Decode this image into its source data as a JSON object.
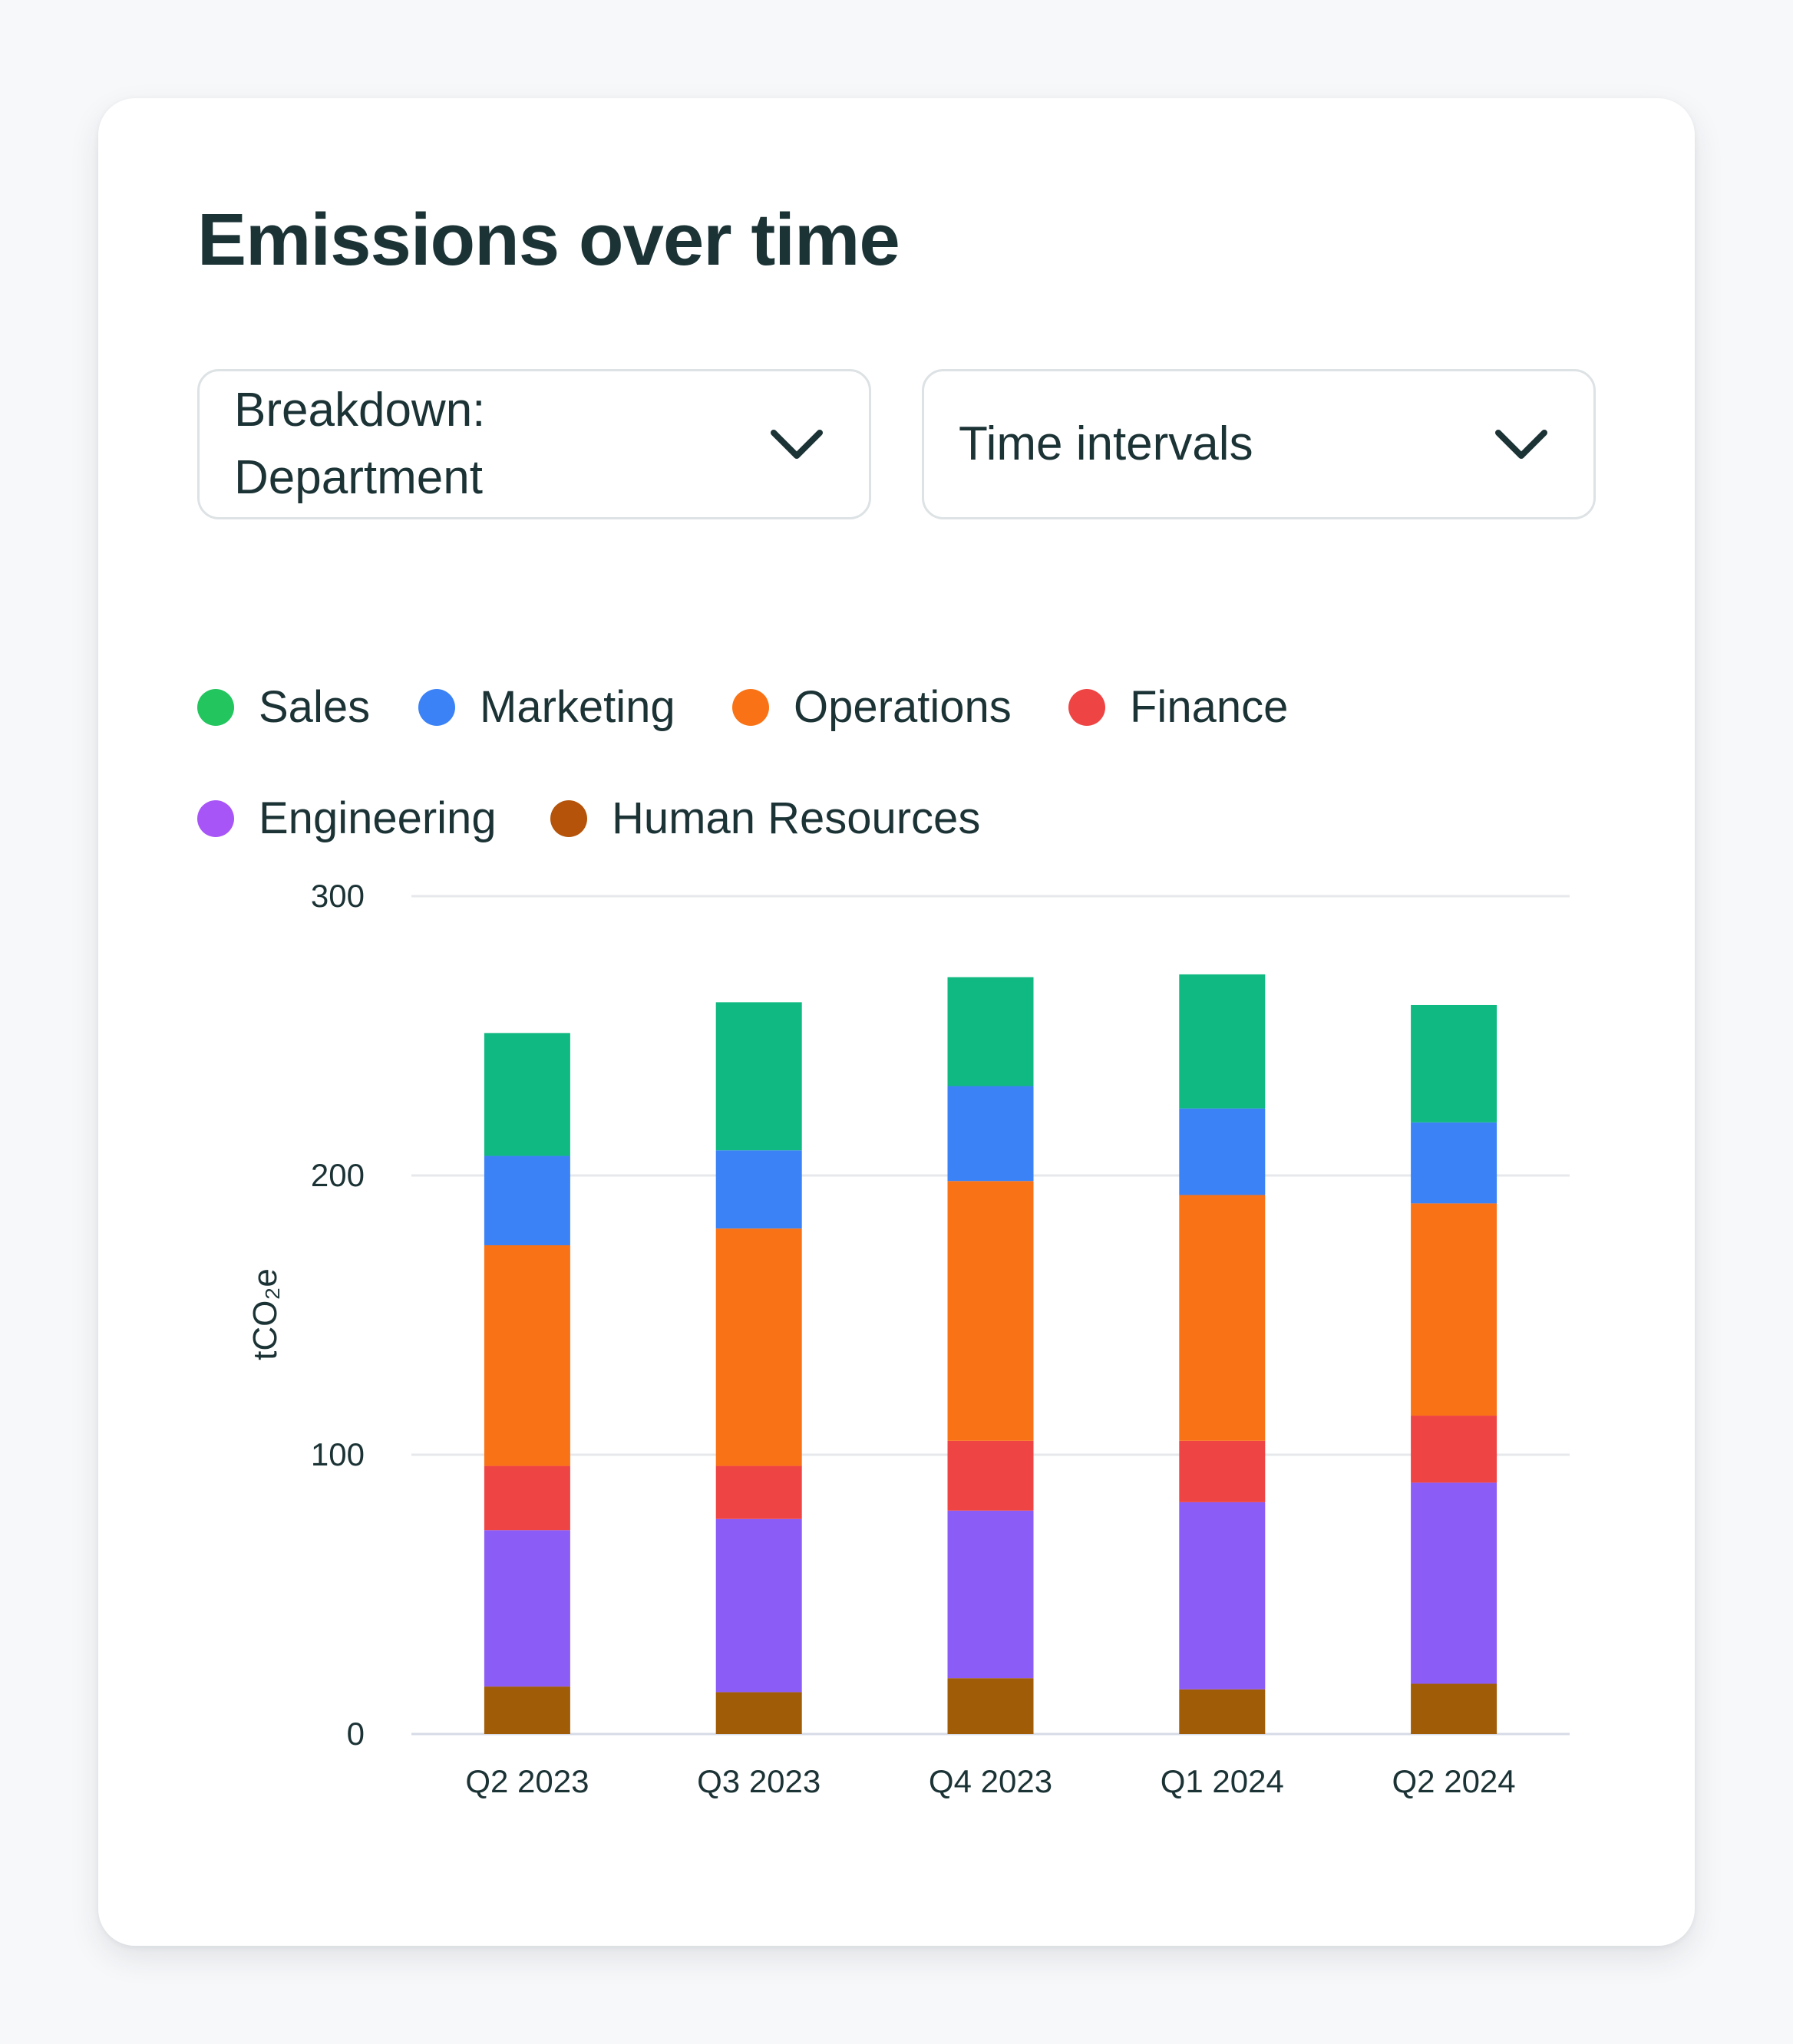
{
  "card": {
    "title": "Emissions over time",
    "breakdown_select": {
      "label": "Breakdown: Department"
    },
    "interval_select": {
      "label": "Time intervals"
    }
  },
  "chart_data": {
    "type": "bar",
    "stacked": true,
    "title": "",
    "xlabel": "",
    "ylabel": "tCO₂e",
    "ylim": [
      0,
      300
    ],
    "yticks": [
      0,
      100,
      200,
      300
    ],
    "grid": true,
    "legend_position": "top-left",
    "categories": [
      "Q2 2023",
      "Q3 2023",
      "Q4 2023",
      "Q1 2024",
      "Q2 2024"
    ],
    "series": [
      {
        "name": "Human Resources",
        "color": "#a15c07",
        "values": [
          17,
          15,
          20,
          16,
          18
        ]
      },
      {
        "name": "Engineering",
        "color": "#8b5cf6",
        "values": [
          56,
          62,
          60,
          67,
          72
        ]
      },
      {
        "name": "Finance",
        "color": "#ef4444",
        "values": [
          23,
          19,
          25,
          22,
          24
        ]
      },
      {
        "name": "Operations",
        "color": "#f97316",
        "values": [
          79,
          85,
          93,
          88,
          76
        ]
      },
      {
        "name": "Marketing",
        "color": "#3b82f6",
        "values": [
          32,
          28,
          34,
          31,
          29
        ]
      },
      {
        "name": "Sales",
        "color": "#10b981",
        "values": [
          44,
          53,
          39,
          48,
          42
        ]
      }
    ],
    "legend": [
      {
        "name": "Sales",
        "color": "#22c55e"
      },
      {
        "name": "Marketing",
        "color": "#3b82f6"
      },
      {
        "name": "Operations",
        "color": "#f97316"
      },
      {
        "name": "Finance",
        "color": "#ef4444"
      },
      {
        "name": "Engineering",
        "color": "#a855f7"
      },
      {
        "name": "Human Resources",
        "color": "#b45309"
      }
    ]
  }
}
